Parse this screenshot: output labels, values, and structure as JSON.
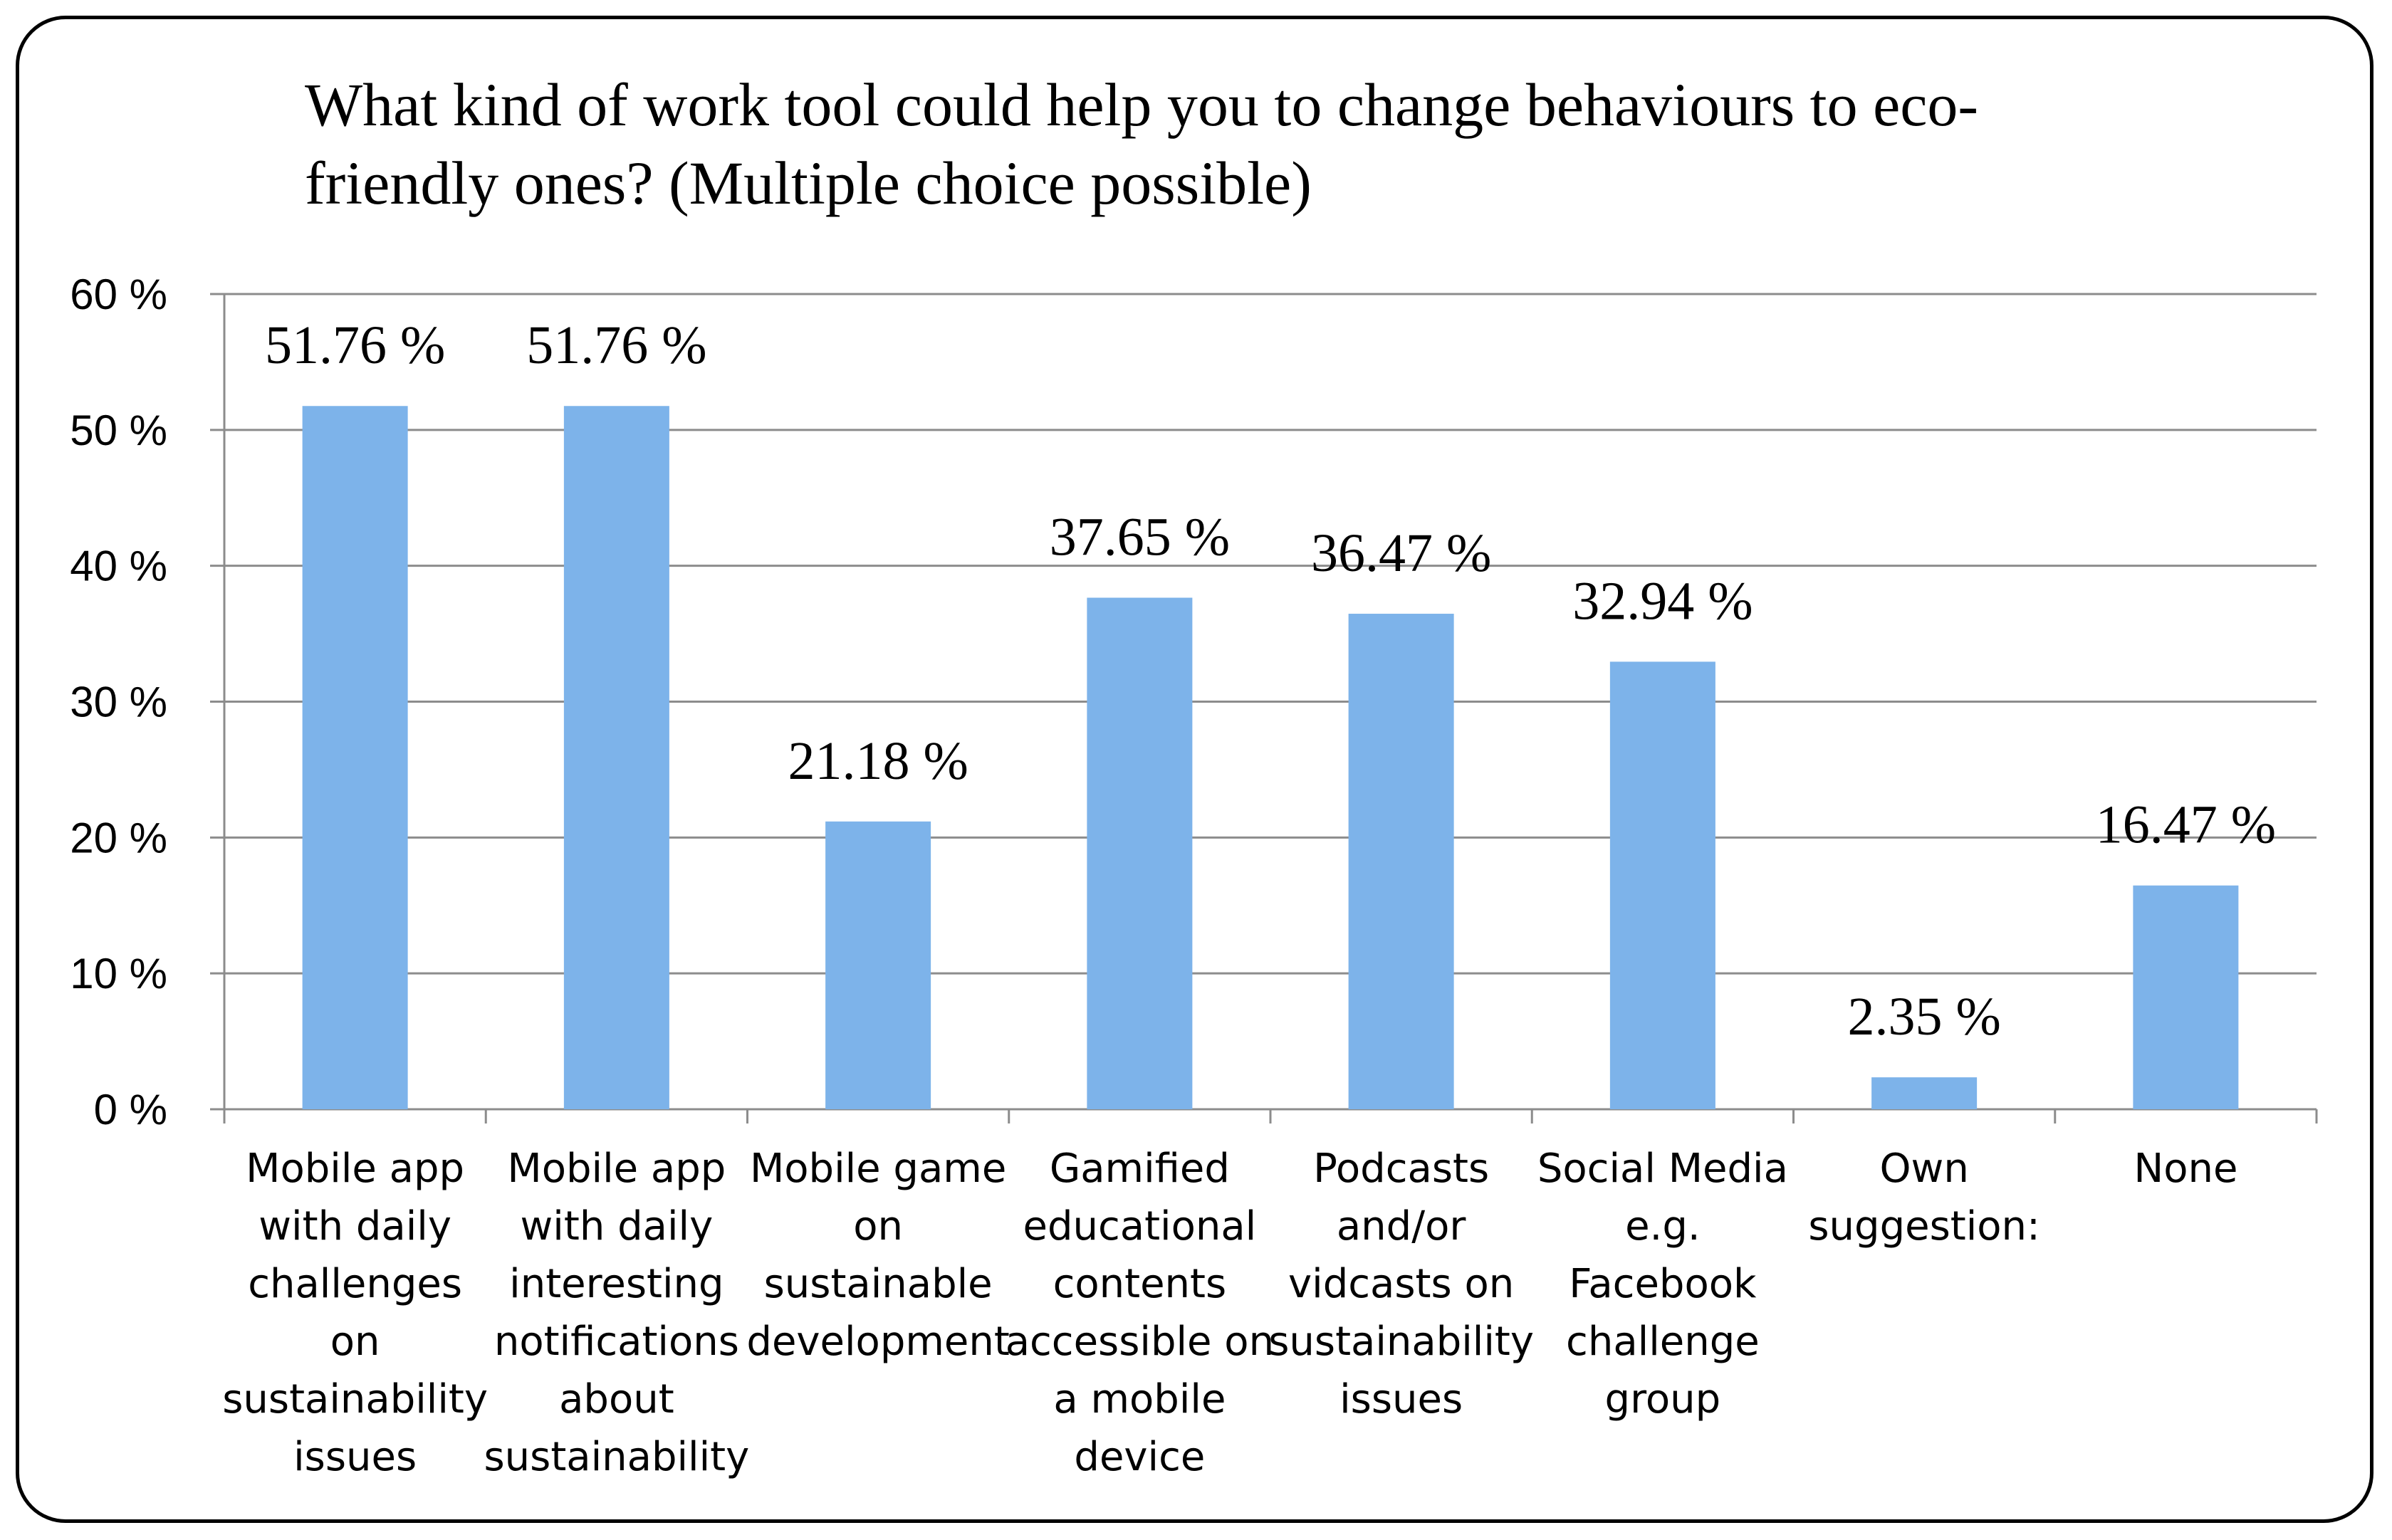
{
  "chart_data": {
    "type": "bar",
    "title": "What kind of work tool could help you to change behaviours to eco-friendly ones? (Multiple choice possible)",
    "title_lines": [
      "What kind of work tool could help you to change behaviours to eco-",
      "friendly ones? (Multiple choice possible)"
    ],
    "categories": [
      "Mobile app with daily challenges on sustainability issues",
      "Mobile app with daily interesting notifications about sustainability",
      "Mobile game on sustainable development",
      "Gamified educational contents accessible on a mobile device",
      "Podcasts and/or vidcasts on sustainability issues",
      "Social Media e.g. Facebook challenge group",
      "Own suggestion:",
      "None"
    ],
    "category_lines": [
      [
        "Mobile app",
        "with daily",
        "challenges",
        "on",
        "sustainability",
        "issues"
      ],
      [
        "Mobile app",
        "with daily",
        "interesting",
        "notifications",
        "about",
        "sustainability"
      ],
      [
        "Mobile game",
        "on",
        "sustainable",
        "development"
      ],
      [
        "Gamified",
        "educational",
        "contents",
        "accessible on",
        "a mobile",
        "device"
      ],
      [
        "Podcasts",
        "and/or",
        "vidcasts on",
        "sustainability",
        "issues"
      ],
      [
        "Social Media",
        "e.g.",
        "Facebook",
        "challenge",
        "group"
      ],
      [
        "Own",
        "suggestion:"
      ],
      [
        "None"
      ]
    ],
    "values": [
      51.76,
      51.76,
      21.18,
      37.65,
      36.47,
      32.94,
      2.35,
      16.47
    ],
    "data_labels": [
      "51.76 %",
      "51.76 %",
      "21.18 %",
      "37.65 %",
      "36.47 %",
      "32.94 %",
      "2.35 %",
      "16.47 %"
    ],
    "ylim": [
      0,
      60
    ],
    "yticks": [
      0,
      10,
      20,
      30,
      40,
      50,
      60
    ],
    "ytick_labels": [
      "0 %",
      "10 %",
      "20 %",
      "30 %",
      "40 %",
      "50 %",
      "60 %"
    ],
    "xlabel": "",
    "ylabel": "",
    "grid": true,
    "bar_color": "#7db3ea",
    "grid_color": "#8c8c8c"
  }
}
